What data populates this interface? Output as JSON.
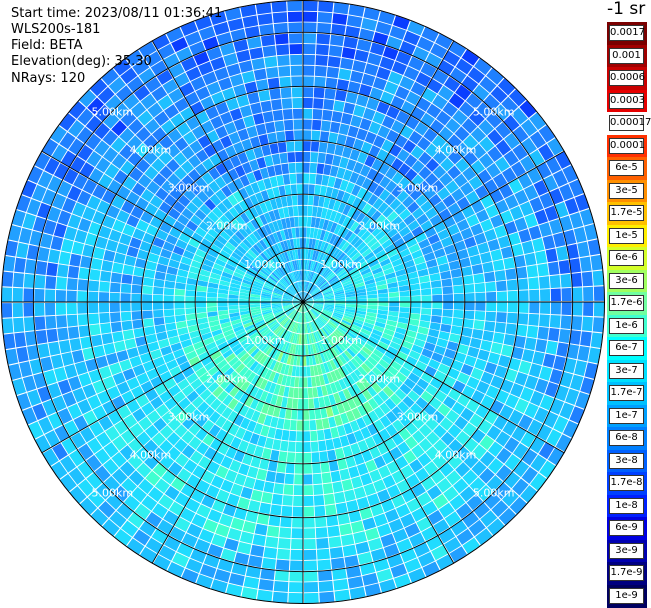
{
  "info": {
    "start_time": "Start time: 2023/08/11 01:36:41",
    "instrument": "WLS200s-181",
    "field": "Field: BETA",
    "elevation": "Elevation(deg): 35.30",
    "nrays": "NRays: 120"
  },
  "colorbar": {
    "units": "-1 sr",
    "labels": [
      "0.0017",
      "0.001",
      "0.0006",
      "0.0003",
      "0.00017",
      "0.0001",
      "6e-5",
      "3e-5",
      "1.7e-5",
      "1e-5",
      "6e-6",
      "3e-6",
      "1.7e-6",
      "1e-6",
      "6e-7",
      "3e-7",
      "1.7e-7",
      "1e-7",
      "6e-8",
      "3e-8",
      "1.7e-8",
      "1e-8",
      "6e-9",
      "3e-9",
      "1.7e-9",
      "1e-9"
    ],
    "colors": [
      "#7a0000",
      "#a00000",
      "#c80000",
      "#e60000",
      "#ffffff",
      "#ff3000",
      "#ff6000",
      "#ff9000",
      "#ffc000",
      "#ffee00",
      "#d4ff2a",
      "#a0ff60",
      "#70ffa0",
      "#40ffd0",
      "#00ffff",
      "#00e0ff",
      "#00c0ff",
      "#00a0ff",
      "#0080ff",
      "#0060ff",
      "#0040ff",
      "#0020ff",
      "#0000e0",
      "#0000b0",
      "#000080",
      "#000060"
    ]
  },
  "chart_data": {
    "type": "heatmap",
    "projection": "polar PPI",
    "field": "BETA",
    "nrays": 120,
    "range_rings_km": [
      1,
      2,
      3,
      4,
      5
    ],
    "max_range_km": 5.6,
    "spokes_deg": [
      0,
      30,
      60,
      90,
      120,
      150,
      180,
      210,
      240,
      270,
      300,
      330
    ],
    "ring_labels": [
      "1.00km",
      "2.00km",
      "3.00km",
      "4.00km",
      "5.00km"
    ],
    "colormap": "jet",
    "value_range": [
      "1e-9",
      "0.0017"
    ]
  }
}
